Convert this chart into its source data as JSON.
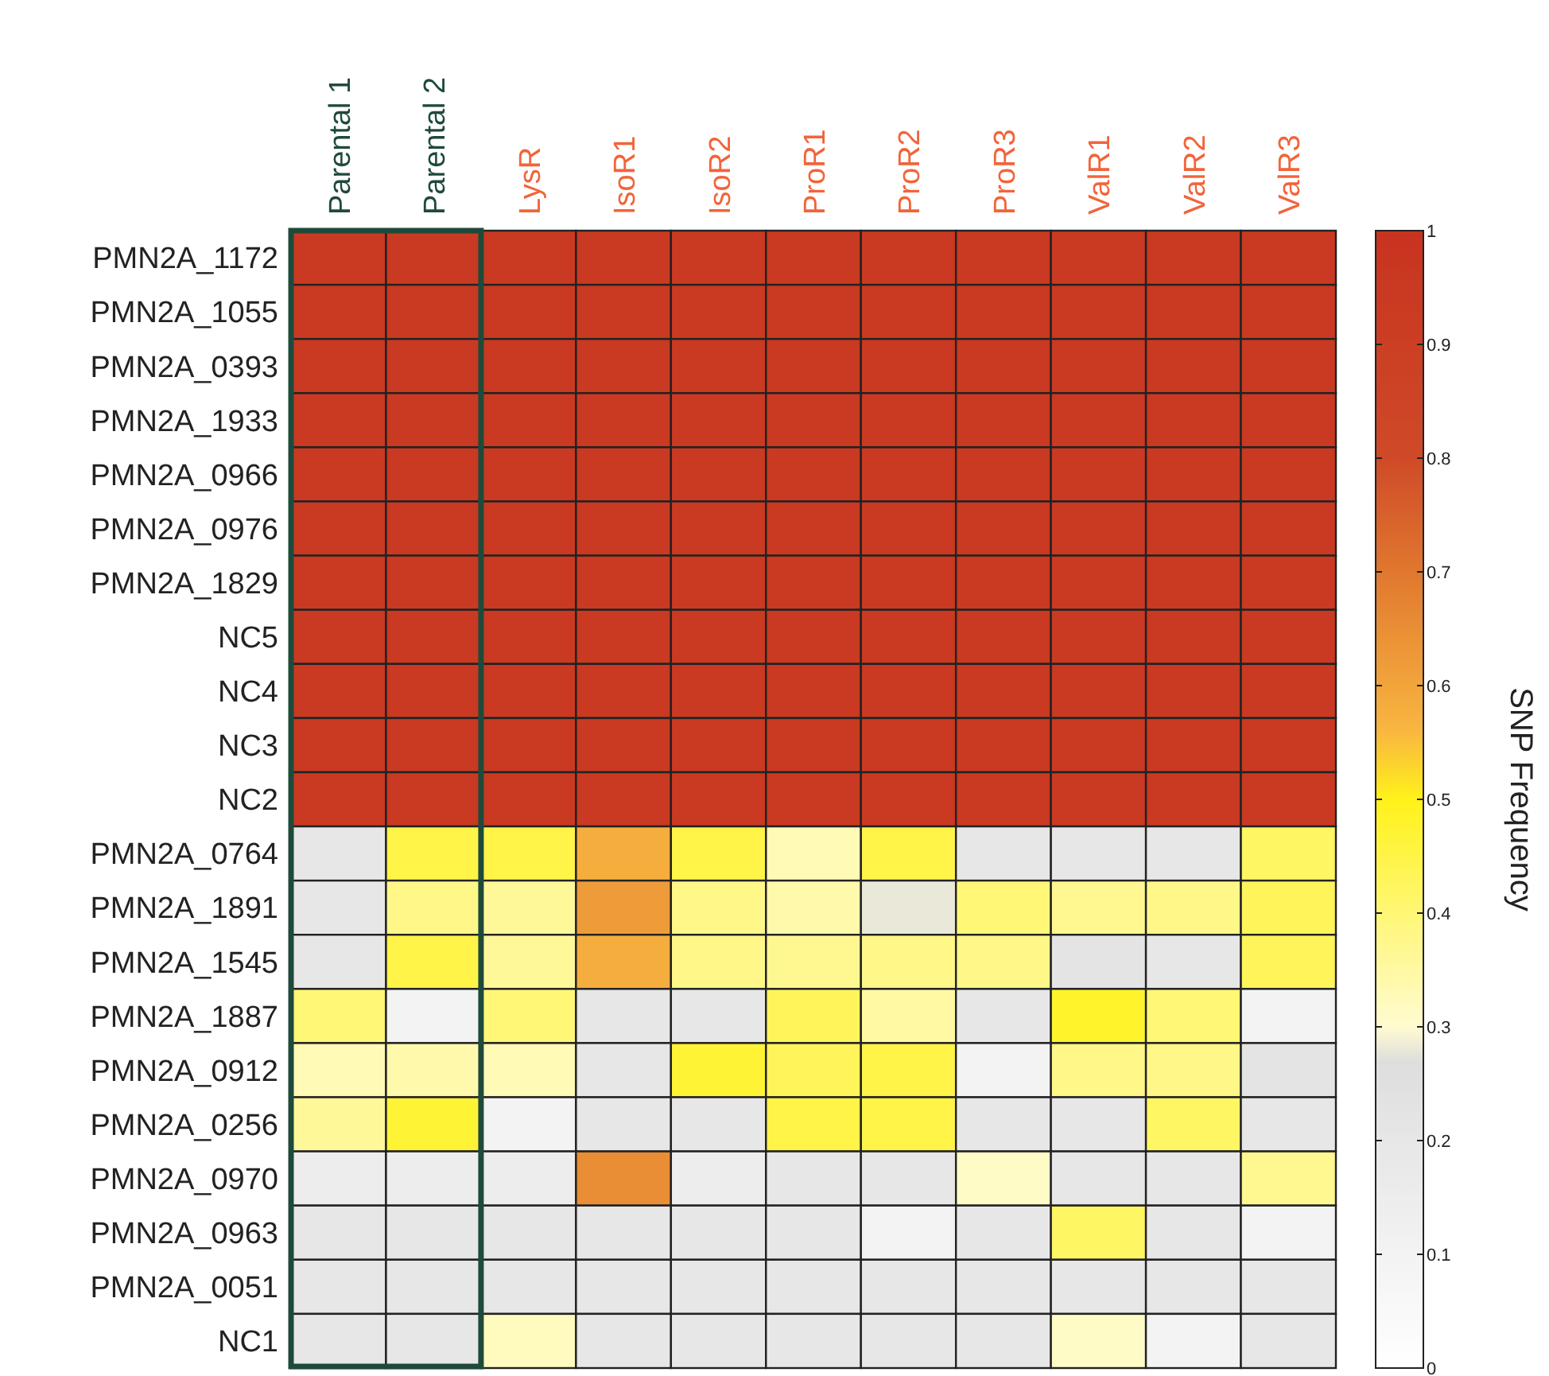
{
  "chart_data": {
    "type": "heatmap",
    "clabel": "SNP Frequency",
    "categories": [
      "Parental 1",
      "Parental 2",
      "LysR",
      "IsoR1",
      "IsoR2",
      "ProR1",
      "ProR2",
      "ProR3",
      "ValR1",
      "ValR2",
      "ValR3"
    ],
    "y_categories": [
      "PMN2A_1172",
      "PMN2A_1055",
      "PMN2A_0393",
      "PMN2A_1933",
      "PMN2A_0966",
      "PMN2A_0976",
      "PMN2A_1829",
      "NC5",
      "NC4",
      "NC3",
      "NC2",
      "PMN2A_0764",
      "PMN2A_1891",
      "PMN2A_1545",
      "PMN2A_1887",
      "PMN2A_0912",
      "PMN2A_0256",
      "PMN2A_0970",
      "PMN2A_0963",
      "PMN2A_0051",
      "NC1"
    ],
    "cells": [
      [
        0.95,
        0.95,
        0.95,
        0.95,
        0.95,
        0.95,
        0.95,
        0.95,
        0.95,
        0.95,
        0.95
      ],
      [
        0.95,
        0.95,
        0.95,
        0.95,
        0.95,
        0.95,
        0.95,
        0.95,
        0.95,
        0.95,
        0.95
      ],
      [
        0.95,
        0.95,
        0.95,
        0.95,
        0.95,
        0.95,
        0.95,
        0.95,
        0.95,
        0.95,
        0.95
      ],
      [
        0.95,
        0.95,
        0.95,
        0.95,
        0.95,
        0.95,
        0.95,
        0.95,
        0.95,
        0.95,
        0.95
      ],
      [
        0.95,
        0.95,
        0.95,
        0.95,
        0.95,
        0.95,
        0.95,
        0.95,
        0.95,
        0.95,
        0.95
      ],
      [
        0.95,
        0.95,
        0.95,
        0.95,
        0.95,
        0.95,
        0.95,
        0.95,
        0.95,
        0.95,
        0.95
      ],
      [
        0.95,
        0.95,
        0.95,
        0.95,
        0.95,
        0.95,
        0.95,
        0.95,
        0.95,
        0.95,
        0.95
      ],
      [
        0.95,
        0.95,
        0.95,
        0.95,
        0.95,
        0.95,
        0.95,
        0.95,
        0.95,
        0.95,
        0.95
      ],
      [
        0.95,
        0.95,
        0.95,
        0.95,
        0.95,
        0.95,
        0.95,
        0.95,
        0.95,
        0.95,
        0.95
      ],
      [
        0.95,
        0.95,
        0.95,
        0.95,
        0.95,
        0.95,
        0.95,
        0.95,
        0.95,
        0.95,
        0.95
      ],
      [
        0.95,
        0.95,
        0.95,
        0.95,
        0.95,
        0.95,
        0.95,
        0.95,
        0.95,
        0.95,
        0.95
      ],
      [
        0.2,
        0.45,
        0.45,
        0.58,
        0.45,
        0.33,
        0.45,
        0.2,
        0.2,
        0.2,
        0.42
      ],
      [
        0.2,
        0.38,
        0.36,
        0.62,
        0.38,
        0.34,
        0.28,
        0.4,
        0.37,
        0.38,
        0.43
      ],
      [
        0.2,
        0.45,
        0.36,
        0.58,
        0.38,
        0.37,
        0.38,
        0.38,
        0.22,
        0.2,
        0.43
      ],
      [
        0.4,
        0.1,
        0.4,
        0.2,
        0.2,
        0.43,
        0.35,
        0.2,
        0.48,
        0.4,
        0.1
      ],
      [
        0.33,
        0.34,
        0.33,
        0.2,
        0.47,
        0.43,
        0.45,
        0.1,
        0.38,
        0.38,
        0.22
      ],
      [
        0.36,
        0.47,
        0.1,
        0.2,
        0.2,
        0.45,
        0.45,
        0.2,
        0.2,
        0.42,
        0.2
      ],
      [
        0.15,
        0.15,
        0.15,
        0.65,
        0.15,
        0.2,
        0.2,
        0.31,
        0.2,
        0.2,
        0.37
      ],
      [
        0.2,
        0.2,
        0.2,
        0.2,
        0.2,
        0.2,
        0.1,
        0.2,
        0.42,
        0.2,
        0.1
      ],
      [
        0.2,
        0.2,
        0.2,
        0.2,
        0.2,
        0.2,
        0.2,
        0.2,
        0.2,
        0.2,
        0.2
      ],
      [
        0.2,
        0.2,
        0.32,
        0.2,
        0.2,
        0.2,
        0.2,
        0.2,
        0.31,
        0.1,
        0.2
      ]
    ],
    "clim": [
      0,
      1
    ],
    "cticks": [
      0,
      0.1,
      0.2,
      0.3,
      0.4,
      0.5,
      0.6,
      0.7,
      0.8,
      0.9,
      1
    ]
  }
}
